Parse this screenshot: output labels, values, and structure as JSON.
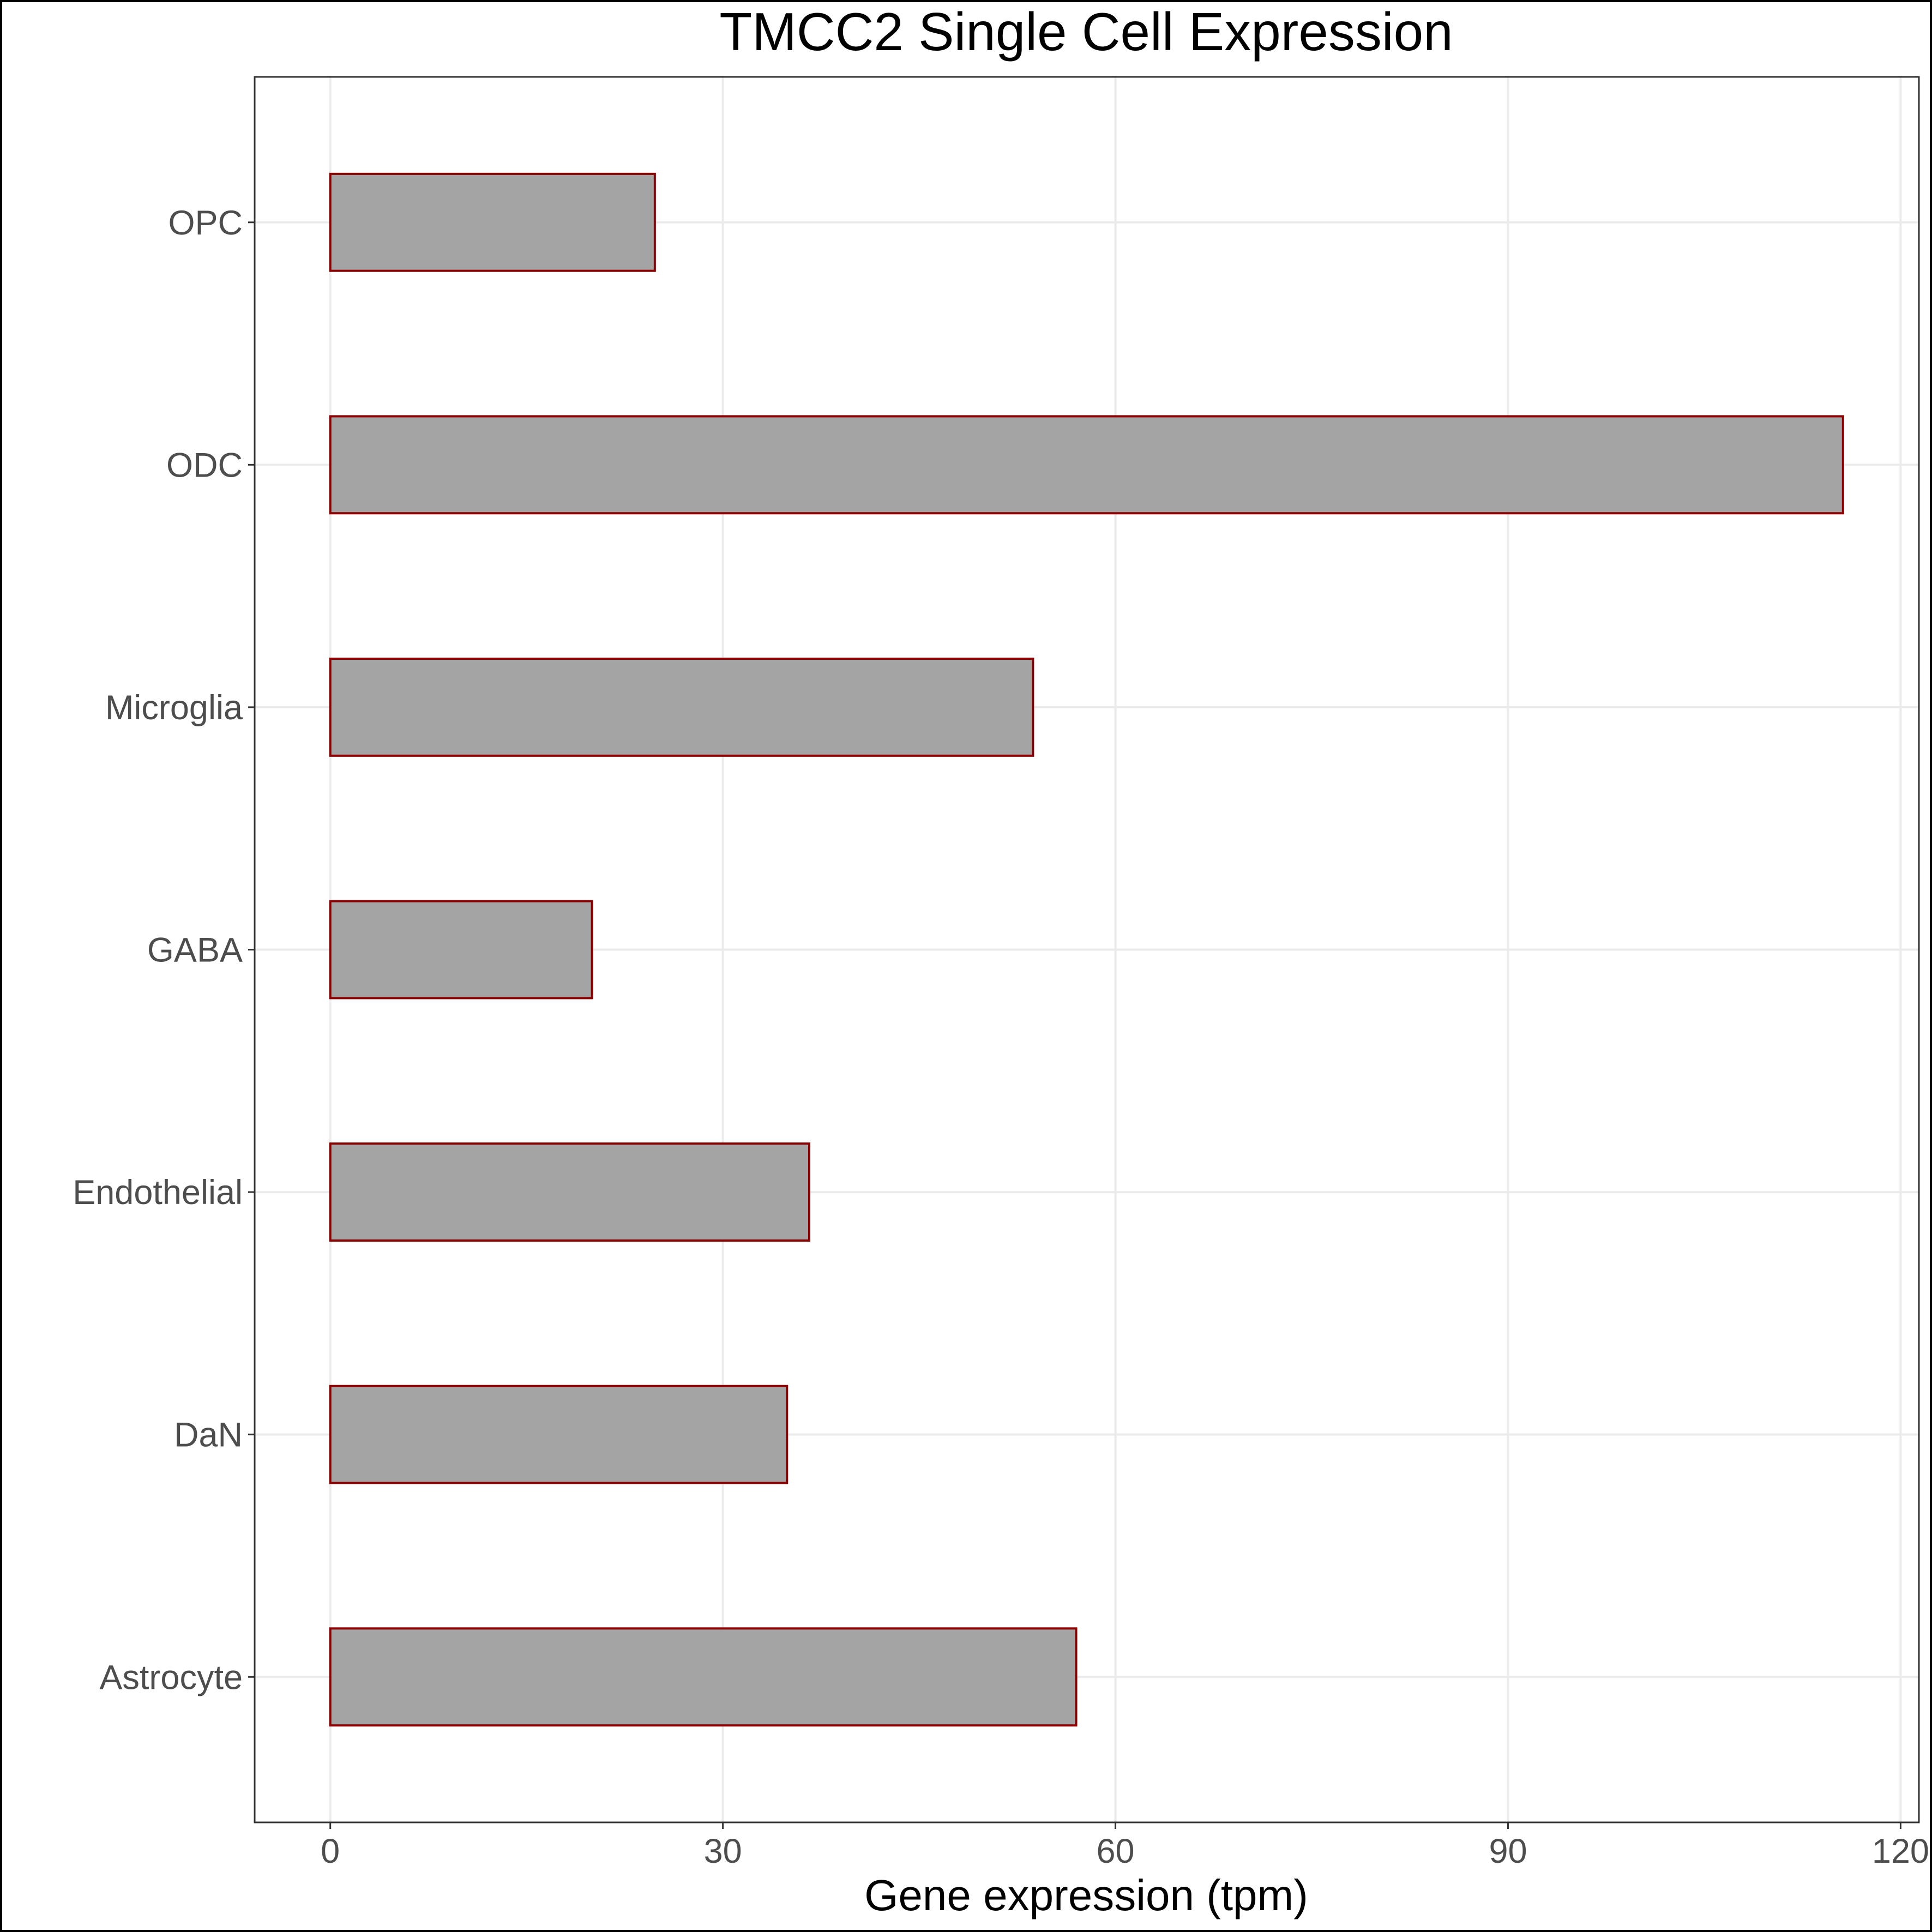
{
  "chart_data": {
    "type": "bar",
    "orientation": "horizontal",
    "title": "TMCC2 Single Cell Expression",
    "xlabel": "Gene expression (tpm)",
    "ylabel": "",
    "categories": [
      "Astrocyte",
      "DaN",
      "Endothelial",
      "GABA",
      "Microglia",
      "ODC",
      "OPC"
    ],
    "values": [
      57.0,
      34.9,
      36.6,
      20.0,
      53.7,
      115.6,
      24.8
    ],
    "xlim": [
      -5.78,
      121.4
    ],
    "xticks": [
      0,
      30,
      60,
      90,
      120
    ],
    "xtick_labels": [
      "0",
      "30",
      "60",
      "90",
      "120"
    ],
    "grid": true,
    "legend": "none",
    "colors": {
      "bar_fill": "#a4a4a4",
      "bar_stroke": "#8b0000",
      "grid": "#ebebeb",
      "panel_border": "#333333",
      "outer_border": "#000000"
    }
  }
}
